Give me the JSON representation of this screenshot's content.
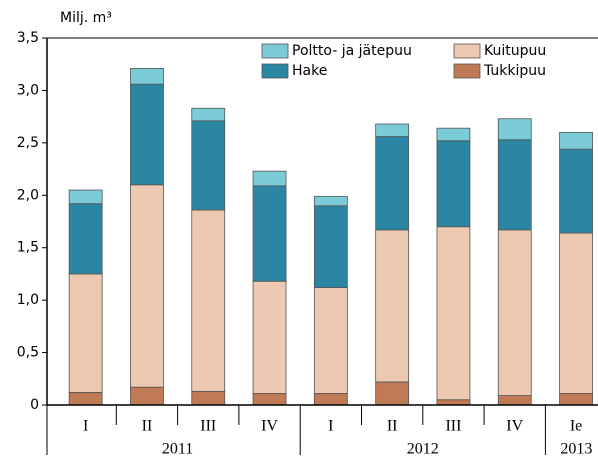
{
  "chart_data": {
    "type": "stacked_bar",
    "y_label": "Milj. m³",
    "categories": [
      "I",
      "II",
      "III",
      "IV",
      "I",
      "II",
      "III",
      "IV",
      "Ie"
    ],
    "groups": [
      "2011",
      "2012",
      "2013"
    ],
    "series": [
      {
        "name": "Tukkipuu",
        "color": "#c07a55",
        "values": [
          0.12,
          0.17,
          0.13,
          0.11,
          0.11,
          0.22,
          0.05,
          0.09,
          0.11
        ]
      },
      {
        "name": "Kuitupuu",
        "color": "#ecc9b0",
        "values": [
          1.13,
          1.93,
          1.73,
          1.07,
          1.01,
          1.45,
          1.65,
          1.58,
          1.53
        ]
      },
      {
        "name": "Hake",
        "color": "#2a86a3",
        "values": [
          0.67,
          0.96,
          0.85,
          0.91,
          0.78,
          0.89,
          0.82,
          0.86,
          0.8
        ]
      },
      {
        "name": "Poltto- ja jätepuu",
        "color": "#7ccbd8",
        "values": [
          0.13,
          0.15,
          0.12,
          0.14,
          0.09,
          0.12,
          0.12,
          0.2,
          0.16
        ]
      }
    ],
    "ylim": [
      0,
      3.5
    ],
    "yticks": [
      0,
      {
        "value": 0.5,
        "label": "0,5"
      },
      {
        "value": 1.0,
        "label": "1,0"
      },
      {
        "value": 1.5,
        "label": "1,5"
      },
      {
        "value": 2.0,
        "label": "2,0"
      },
      {
        "value": 2.5,
        "label": "2,5"
      },
      {
        "value": 3.0,
        "label": "3,0"
      },
      {
        "value": 3.5,
        "label": "3,5"
      }
    ],
    "legend": "upper right"
  }
}
